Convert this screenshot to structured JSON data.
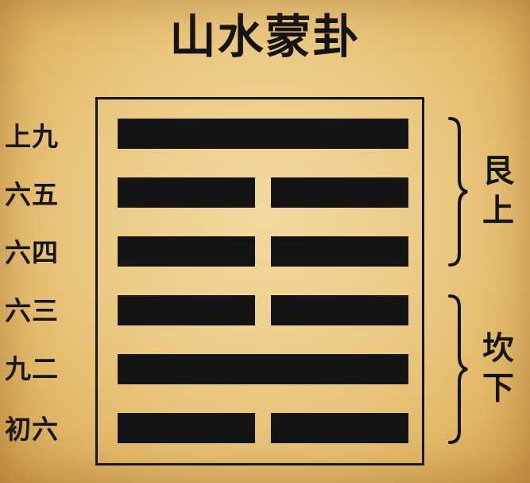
{
  "title": "山水蒙卦",
  "lines": [
    {
      "label": "上九",
      "type": "yang"
    },
    {
      "label": "六五",
      "type": "yin"
    },
    {
      "label": "六四",
      "type": "yin"
    },
    {
      "label": "六三",
      "type": "yin"
    },
    {
      "label": "九二",
      "type": "yang"
    },
    {
      "label": "初六",
      "type": "yin"
    }
  ],
  "trigrams": {
    "upper": {
      "name": "艮",
      "position": "上"
    },
    "lower": {
      "name": "坎",
      "position": "下"
    }
  },
  "colors": {
    "ink": "#141414",
    "parchment": "#ecca84"
  }
}
